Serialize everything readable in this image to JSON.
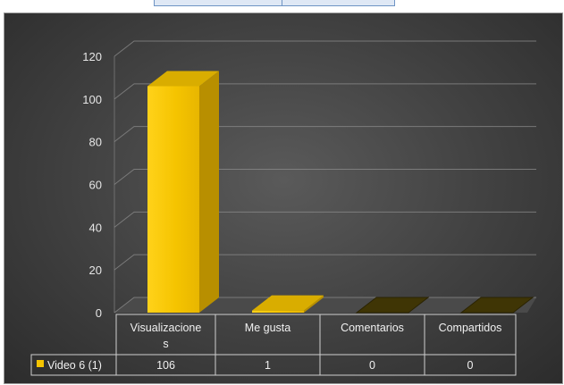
{
  "chart_data": {
    "type": "bar",
    "categories": [
      "Visualizacione s",
      "Me gusta",
      "Comentarios",
      "Compartidos"
    ],
    "y_ticks": [
      0,
      20,
      40,
      60,
      80,
      100,
      120
    ],
    "ylim": [
      0,
      120
    ],
    "series": [
      {
        "name": "Video 6 (1)",
        "values": [
          106,
          1,
          0,
          0
        ]
      }
    ],
    "table_values": [
      "106",
      "1",
      "0",
      "0"
    ],
    "legend_position": "data-table",
    "grid": true,
    "bar_color": "#f5c400",
    "title": "",
    "xlabel": "",
    "ylabel": ""
  }
}
